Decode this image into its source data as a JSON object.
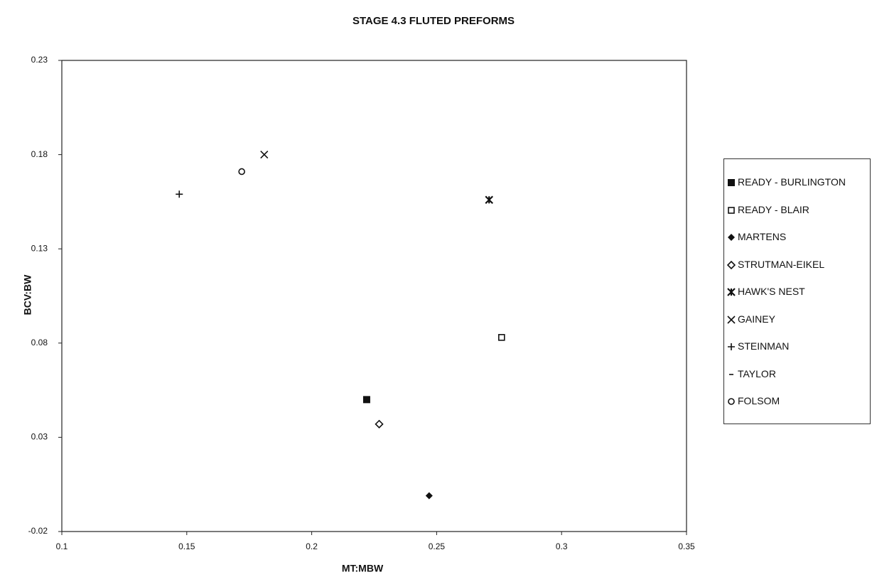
{
  "chart_data": {
    "type": "scatter",
    "title": "STAGE 4.3 FLUTED PREFORMS",
    "x_label": "MT:MBW",
    "y_label": "BCV:BW",
    "xlim": [
      0.1,
      0.35
    ],
    "xticks": [
      0.1,
      0.15,
      0.2,
      0.25,
      0.3,
      0.35
    ],
    "ylim": [
      -0.02,
      0.23
    ],
    "yticks": [
      -0.02,
      0.03,
      0.08,
      0.13,
      0.18,
      0.23
    ],
    "legend": "right",
    "series": [
      {
        "name": "READY - BURLINGTON",
        "color": "#111111",
        "marker": "square-filled",
        "x": [
          0.222
        ],
        "values": [
          0.05
        ]
      },
      {
        "name": "READY - BLAIR",
        "color": "#111111",
        "marker": "square-open",
        "x": [
          0.276
        ],
        "values": [
          0.083
        ]
      },
      {
        "name": "MARTENS",
        "color": "#111111",
        "marker": "diamond-filled",
        "x": [
          0.247
        ],
        "values": [
          -0.001
        ]
      },
      {
        "name": "STRUTMAN-EIKEL",
        "color": "#111111",
        "marker": "diamond-open",
        "x": [
          0.227
        ],
        "values": [
          0.037
        ]
      },
      {
        "name": "HAWK'S NEST",
        "color": "#111111",
        "marker": "star",
        "x": [
          0.271
        ],
        "values": [
          0.156
        ]
      },
      {
        "name": "GAINEY",
        "color": "#111111",
        "marker": "cross",
        "x": [
          0.181
        ],
        "values": [
          0.18
        ]
      },
      {
        "name": "STEINMAN",
        "color": "#111111",
        "marker": "plus",
        "x": [
          0.147
        ],
        "values": [
          0.159
        ]
      },
      {
        "name": "TAYLOR",
        "color": "#111111",
        "marker": "dash",
        "x": [],
        "values": []
      },
      {
        "name": "FOLSOM",
        "color": "#111111",
        "marker": "circle-open",
        "x": [
          0.172
        ],
        "values": [
          0.171
        ]
      }
    ]
  }
}
